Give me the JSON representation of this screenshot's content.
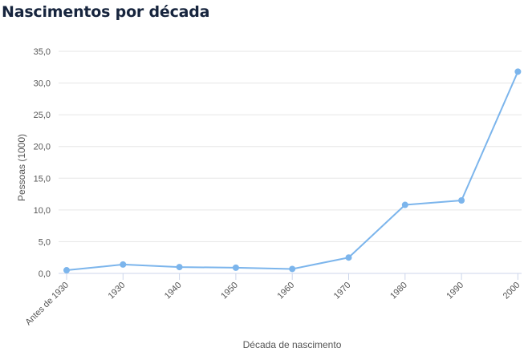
{
  "chart_data": {
    "type": "line",
    "title": "Nascimentos por década",
    "xlabel": "Década de nascimento",
    "ylabel": "Pessoas (1000)",
    "categories": [
      "Antes de 1930",
      "1930",
      "1940",
      "1950",
      "1960",
      "1970",
      "1980",
      "1990",
      "2000"
    ],
    "series": [
      {
        "values": [
          0.5,
          1.4,
          1.0,
          0.9,
          0.7,
          2.5,
          10.8,
          11.5,
          31.8
        ]
      }
    ],
    "ylim": [
      0,
      35
    ],
    "yticks": [
      "0,0",
      "5,0",
      "10,0",
      "15,0",
      "20,0",
      "25,0",
      "30,0",
      "35,0"
    ],
    "grid": true,
    "colors": {
      "line": "#7cb5ec",
      "grid": "#e6e6e6",
      "title": "#16243d"
    }
  }
}
